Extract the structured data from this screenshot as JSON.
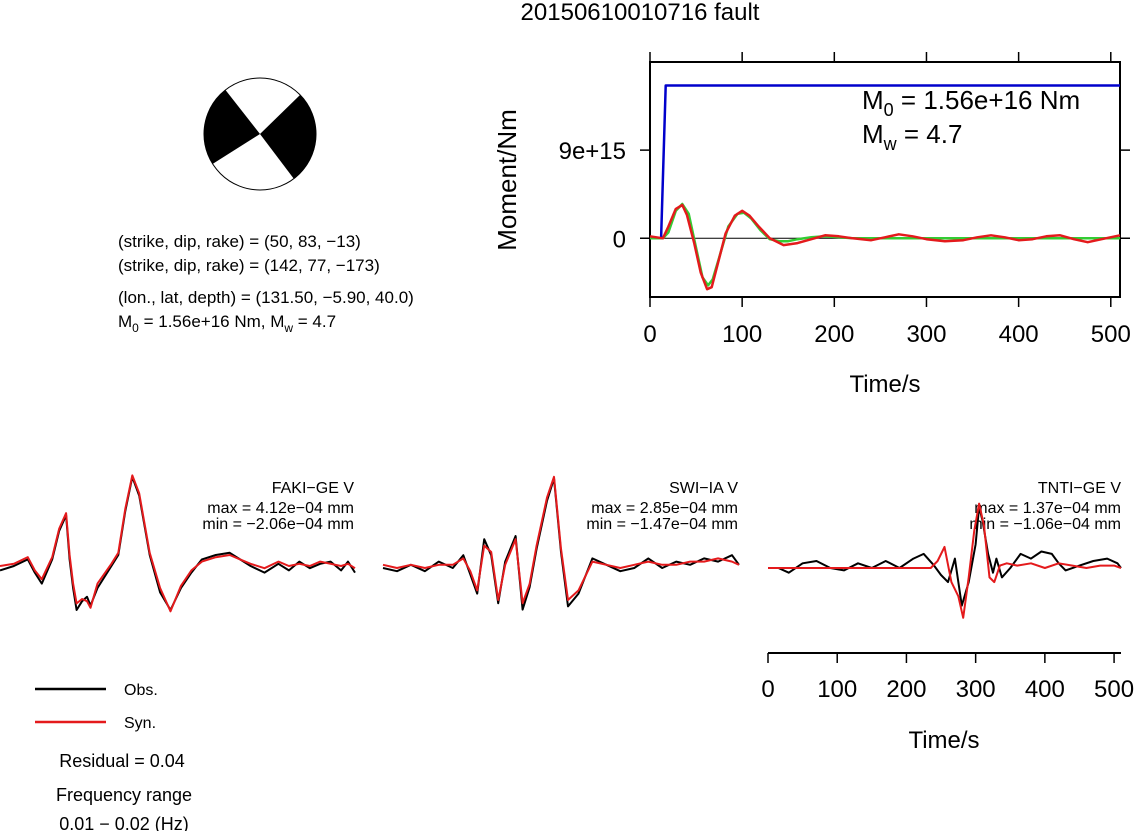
{
  "title": "20150610010716 fault",
  "mechanism": {
    "lines": [
      "(strike, dip, rake) = (50, 83, −13)",
      "(strike, dip, rake) = (142, 77, −173)",
      "(lon., lat, depth) = (131.50, −5.90, 40.0)"
    ],
    "moment_prefix": "M",
    "moment_sub": "0",
    "moment_text": " = 1.56e+16 Nm, M",
    "mw_sub": "w",
    "mw_text": " = 4.7"
  },
  "legend": {
    "obs_label": "Obs.",
    "syn_label": "Syn.",
    "residual": "Residual = 0.04",
    "freq_label": "Frequency range",
    "freq_value": "0.01 − 0.02 (Hz)"
  },
  "colors": {
    "observed": "#000000",
    "synthetic": "#e41a1c",
    "cumulative_moment": "#0000cc",
    "moment_rate_model": "#33cc33",
    "moment_rate_data": "#e41a1c",
    "beachball_fill": "#000000"
  },
  "chart_data": [
    {
      "type": "line",
      "panel": "moment",
      "ylabel": "Moment/Nm",
      "xlabel": "Time/s",
      "xlim": [
        0,
        510
      ],
      "ylim": [
        -6000000000000000,
        18000000000000000
      ],
      "xticks": [
        0,
        100,
        200,
        300,
        400,
        500
      ],
      "xtick_labels": [
        "0",
        "100",
        "200",
        "300",
        "400",
        "500"
      ],
      "yticks": [
        0,
        9000000000000000
      ],
      "ytick_labels": [
        "0",
        "9e+15"
      ],
      "annotation_m0": {
        "sym": "M",
        "sub": "0",
        "text": " = 1.56e+16 Nm"
      },
      "annotation_mw": {
        "sym": "M",
        "sub": "w",
        "text": " = 4.7"
      },
      "series": [
        {
          "color": "#0000cc",
          "x": [
            0,
            12,
            17,
            510
          ],
          "y": [
            0,
            0,
            15600000000000000,
            15600000000000000
          ]
        },
        {
          "color": "#33cc33",
          "x": [
            0,
            14,
            20,
            28,
            35,
            42,
            50,
            57,
            63,
            68,
            75,
            85,
            95,
            102,
            110,
            120,
            130,
            140,
            150,
            160,
            175,
            190,
            205,
            220,
            240,
            510
          ],
          "y": [
            0,
            0,
            600000000000000,
            2800000000000000,
            3500000000000000,
            2500000000000000,
            -1000000000000000,
            -4000000000000000,
            -4800000000000000,
            -4200000000000000,
            -2000000000000000,
            1200000000000000,
            2500000000000000,
            2600000000000000,
            2000000000000000,
            800000000000000,
            -100000000000000,
            -300000000000000,
            -300000000000000,
            -100000000000000,
            100000000000000,
            200000000000000,
            100000000000000,
            0,
            0,
            0
          ]
        },
        {
          "color": "#e41a1c",
          "x": [
            0,
            14,
            20,
            28,
            35,
            40,
            48,
            55,
            62,
            67,
            73,
            82,
            92,
            100,
            108,
            118,
            130,
            145,
            160,
            175,
            190,
            205,
            220,
            240,
            255,
            270,
            285,
            300,
            320,
            340,
            355,
            370,
            385,
            400,
            415,
            430,
            445,
            460,
            475,
            490,
            510
          ],
          "y": [
            200000000000000,
            0,
            1200000000000000,
            3000000000000000,
            3400000000000000,
            2400000000000000,
            -500000000000000,
            -3500000000000000,
            -5200000000000000,
            -5000000000000000,
            -2800000000000000,
            500000000000000,
            2300000000000000,
            2800000000000000,
            2300000000000000,
            1200000000000000,
            0,
            -700000000000000,
            -500000000000000,
            -100000000000000,
            300000000000000,
            200000000000000,
            0,
            -200000000000000,
            100000000000000,
            400000000000000,
            200000000000000,
            -100000000000000,
            -300000000000000,
            -200000000000000,
            100000000000000,
            300000000000000,
            100000000000000,
            -200000000000000,
            -100000000000000,
            200000000000000,
            300000000000000,
            -100000000000000,
            -400000000000000,
            -100000000000000,
            300000000000000
          ]
        }
      ]
    },
    {
      "type": "line",
      "panel": "waveform",
      "station": "FAKI−GE V",
      "max_text": "max = 4.12e−04 mm",
      "min_text": "min = −2.06e−04 mm",
      "xlim": [
        0,
        510
      ],
      "ylim": [
        -2.06,
        4.12
      ],
      "series": [
        {
          "color": "#000000",
          "x": [
            0,
            20,
            40,
            50,
            60,
            75,
            85,
            95,
            100,
            105,
            110,
            118,
            125,
            130,
            140,
            160,
            170,
            180,
            190,
            200,
            215,
            230,
            245,
            260,
            275,
            290,
            310,
            330,
            345,
            360,
            380,
            400,
            415,
            430,
            445,
            460,
            475,
            490,
            500,
            510
          ],
          "y": [
            -0.2,
            0.0,
            0.3,
            -0.3,
            -0.8,
            0.3,
            1.6,
            2.3,
            0.3,
            -1.0,
            -2.0,
            -1.6,
            -1.4,
            -1.8,
            -1.0,
            0.0,
            0.5,
            2.5,
            4.05,
            3.2,
            0.5,
            -1.2,
            -2.0,
            -1.0,
            -0.3,
            0.3,
            0.5,
            0.6,
            0.3,
            0.0,
            -0.3,
            0.1,
            -0.2,
            0.2,
            -0.1,
            0.1,
            0.2,
            -0.2,
            0.2,
            -0.3
          ]
        },
        {
          "color": "#e41a1c",
          "x": [
            0,
            20,
            40,
            50,
            60,
            75,
            85,
            95,
            100,
            105,
            110,
            118,
            125,
            130,
            140,
            160,
            170,
            180,
            190,
            200,
            215,
            230,
            245,
            260,
            275,
            290,
            310,
            330,
            345,
            360,
            380,
            400,
            415,
            430,
            445,
            460,
            475,
            490,
            500,
            510
          ],
          "y": [
            0.0,
            0.1,
            0.4,
            -0.2,
            -0.6,
            0.4,
            1.7,
            2.4,
            0.5,
            -0.8,
            -1.7,
            -1.5,
            -1.6,
            -1.9,
            -0.8,
            0.1,
            0.6,
            2.6,
            4.12,
            3.3,
            0.6,
            -1.0,
            -2.06,
            -0.9,
            -0.2,
            0.2,
            0.4,
            0.5,
            0.3,
            0.1,
            -0.1,
            0.2,
            0.0,
            0.1,
            0.0,
            0.2,
            0.1,
            0.0,
            0.1,
            -0.1
          ]
        }
      ]
    },
    {
      "type": "line",
      "panel": "waveform",
      "station": "SWI−IA V",
      "max_text": "max = 2.85e−04 mm",
      "min_text": "min = −1.47e−04 mm",
      "xlim": [
        0,
        510
      ],
      "ylim": [
        -1.47,
        2.85
      ],
      "series": [
        {
          "color": "#000000",
          "x": [
            0,
            20,
            40,
            60,
            80,
            100,
            115,
            125,
            135,
            145,
            155,
            165,
            175,
            190,
            200,
            210,
            220,
            235,
            245,
            255,
            265,
            280,
            300,
            320,
            340,
            360,
            380,
            400,
            420,
            440,
            460,
            480,
            500,
            510
          ],
          "y": [
            0.0,
            -0.1,
            0.1,
            -0.1,
            0.2,
            0.0,
            0.4,
            -0.2,
            -0.8,
            0.9,
            0.4,
            -1.1,
            0.2,
            1.0,
            -1.3,
            -0.6,
            0.6,
            2.1,
            2.8,
            0.5,
            -1.2,
            -0.8,
            0.3,
            0.1,
            -0.1,
            0.0,
            0.3,
            0.0,
            0.2,
            0.1,
            0.3,
            0.2,
            0.4,
            0.1
          ]
        },
        {
          "color": "#e41a1c",
          "x": [
            0,
            20,
            40,
            60,
            80,
            100,
            115,
            125,
            135,
            145,
            155,
            165,
            175,
            190,
            200,
            210,
            220,
            235,
            245,
            255,
            265,
            280,
            300,
            320,
            340,
            360,
            380,
            400,
            420,
            440,
            460,
            480,
            500,
            510
          ],
          "y": [
            0.1,
            0.0,
            0.1,
            0.0,
            0.1,
            0.1,
            0.3,
            -0.1,
            -0.7,
            0.7,
            0.5,
            -1.0,
            0.1,
            0.9,
            -1.1,
            -0.5,
            0.7,
            2.2,
            2.85,
            0.6,
            -1.0,
            -0.7,
            0.2,
            0.1,
            0.0,
            0.1,
            0.2,
            0.1,
            0.1,
            0.2,
            0.2,
            0.3,
            0.2,
            0.1
          ]
        }
      ]
    },
    {
      "type": "line",
      "panel": "waveform",
      "station": "TNTI−GE V",
      "max_text": "max = 1.37e−04 mm",
      "min_text": "min = −1.06e−04 mm",
      "xlabel": "Time/s",
      "xlim": [
        0,
        510
      ],
      "ylim": [
        -1.06,
        1.37
      ],
      "xticks": [
        0,
        100,
        200,
        300,
        400,
        500
      ],
      "xtick_labels": [
        "0",
        "100",
        "200",
        "300",
        "400",
        "500"
      ],
      "series": [
        {
          "color": "#000000",
          "x": [
            0,
            15,
            30,
            50,
            70,
            90,
            110,
            130,
            150,
            170,
            190,
            210,
            225,
            240,
            250,
            260,
            270,
            280,
            290,
            300,
            305,
            310,
            318,
            325,
            330,
            338,
            350,
            365,
            380,
            395,
            410,
            420,
            430,
            450,
            470,
            490,
            505,
            510
          ],
          "y": [
            0.0,
            0.0,
            -0.1,
            0.1,
            0.15,
            0.0,
            -0.05,
            0.1,
            0.0,
            0.15,
            0.0,
            0.2,
            0.3,
            0.05,
            -0.15,
            -0.3,
            0.2,
            -0.8,
            -0.3,
            0.5,
            1.3,
            1.0,
            0.3,
            -0.1,
            0.2,
            -0.2,
            0.0,
            0.3,
            0.2,
            0.35,
            0.3,
            0.1,
            -0.05,
            0.05,
            0.15,
            0.2,
            0.1,
            0.0
          ]
        },
        {
          "color": "#e41a1c",
          "x": [
            0,
            20,
            40,
            60,
            80,
            100,
            120,
            140,
            160,
            180,
            200,
            220,
            235,
            245,
            255,
            265,
            275,
            282,
            290,
            298,
            305,
            312,
            320,
            327,
            335,
            345,
            360,
            380,
            400,
            420,
            440,
            460,
            480,
            500,
            510
          ],
          "y": [
            0.0,
            0.0,
            0.0,
            0.0,
            0.0,
            0.0,
            0.0,
            0.0,
            0.0,
            0.0,
            0.0,
            0.0,
            0.0,
            0.15,
            0.45,
            -0.3,
            -0.6,
            -1.06,
            -0.2,
            0.8,
            1.37,
            0.9,
            -0.2,
            -0.3,
            0.05,
            0.1,
            0.05,
            0.1,
            0.0,
            0.1,
            0.05,
            0.0,
            0.05,
            0.05,
            0.0
          ]
        }
      ]
    }
  ]
}
